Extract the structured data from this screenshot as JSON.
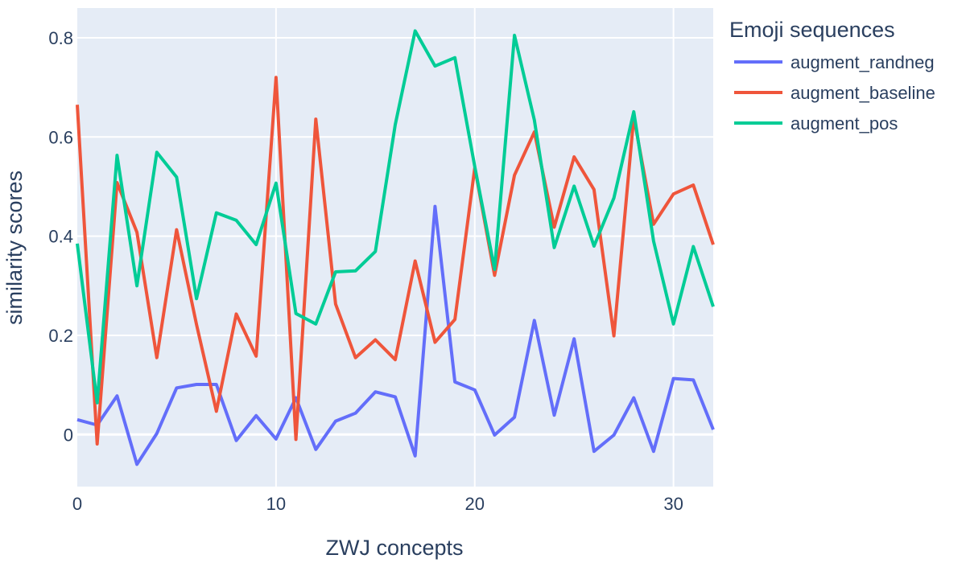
{
  "chart_data": {
    "type": "line",
    "xlabel": "ZWJ concepts",
    "ylabel": "similarity scores",
    "xlim": [
      0,
      32
    ],
    "ylim": [
      -0.105,
      0.86
    ],
    "xticks": [
      0,
      10,
      20,
      30
    ],
    "yticks": [
      0,
      0.2,
      0.4,
      0.6,
      0.8
    ],
    "ytick_labels": [
      "0",
      "0.2",
      "0.4",
      "0.6",
      "0.8"
    ],
    "grid": true,
    "legend": {
      "title": "Emoji sequences",
      "placement": "right"
    },
    "x": [
      0,
      1,
      2,
      3,
      4,
      5,
      6,
      7,
      8,
      9,
      10,
      11,
      12,
      13,
      14,
      15,
      16,
      17,
      18,
      19,
      20,
      21,
      22,
      23,
      24,
      25,
      26,
      27,
      28,
      29,
      30,
      31,
      32
    ],
    "series": [
      {
        "name": "augment_randneg",
        "color": "#636efa",
        "values": [
          0.03,
          0.019,
          0.078,
          -0.06,
          0.002,
          0.094,
          0.101,
          0.101,
          -0.012,
          0.038,
          -0.009,
          0.074,
          -0.03,
          0.027,
          0.043,
          0.086,
          0.076,
          -0.043,
          0.46,
          0.106,
          0.09,
          -0.001,
          0.035,
          0.23,
          0.039,
          0.193,
          -0.034,
          -0.001,
          0.074,
          -0.034,
          0.113,
          0.11,
          0.01
        ]
      },
      {
        "name": "augment_baseline",
        "color": "#ef553b",
        "values": [
          0.665,
          -0.019,
          0.508,
          0.408,
          0.155,
          0.413,
          0.222,
          0.047,
          0.243,
          0.158,
          0.72,
          -0.01,
          0.636,
          0.263,
          0.155,
          0.191,
          0.151,
          0.35,
          0.186,
          0.232,
          0.538,
          0.321,
          0.523,
          0.61,
          0.418,
          0.56,
          0.494,
          0.199,
          0.64,
          0.424,
          0.485,
          0.503,
          0.383
        ]
      },
      {
        "name": "augment_pos",
        "color": "#00cc96",
        "values": [
          0.385,
          0.064,
          0.563,
          0.3,
          0.569,
          0.519,
          0.274,
          0.447,
          0.432,
          0.383,
          0.507,
          0.244,
          0.223,
          0.328,
          0.33,
          0.369,
          0.625,
          0.814,
          0.743,
          0.76,
          0.54,
          0.333,
          0.805,
          0.634,
          0.377,
          0.501,
          0.38,
          0.477,
          0.651,
          0.39,
          0.223,
          0.379,
          0.258
        ]
      }
    ]
  }
}
